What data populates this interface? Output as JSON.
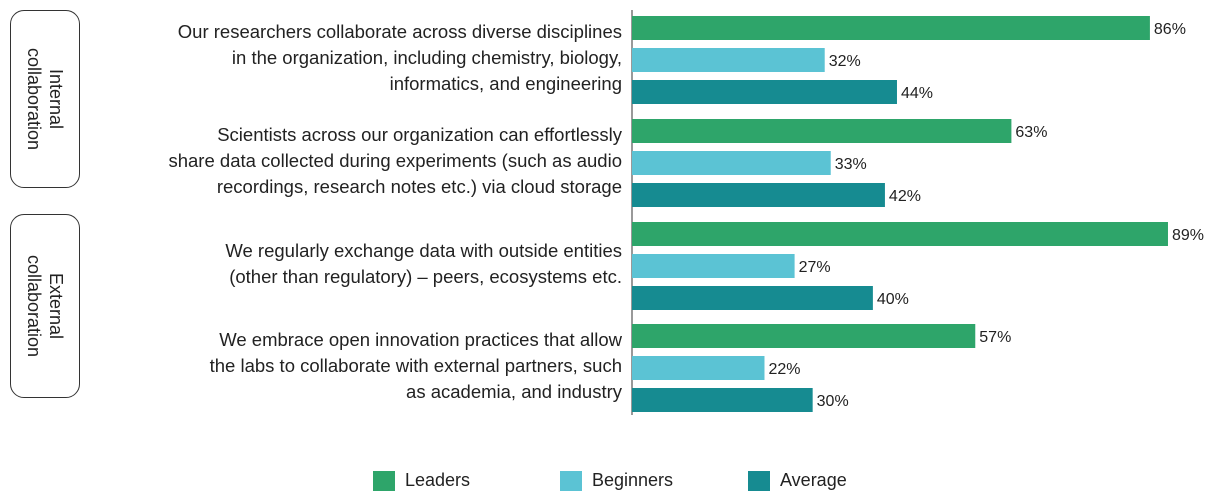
{
  "chart_data": {
    "type": "hbar",
    "groups": [
      "Internal\ncollaboration",
      "External\ncollaboration"
    ],
    "categories": [
      "Our researchers collaborate across diverse disciplines\nin the organization, including chemistry, biology,\ninformatics, and engineering",
      "Scientists across our organization can effortlessly\nshare data collected during experiments (such as audio\nrecordings, research notes etc.) via cloud storage",
      "We regularly exchange data with outside entities\n(other than regulatory) – peers, ecosystems etc.",
      "We embrace open innovation practices that allow\nthe labs to collaborate with external partners, such\nas academia, and industry"
    ],
    "series": [
      {
        "name": "Leaders",
        "color": "#2ea56a",
        "values": [
          86,
          63,
          89,
          57
        ],
        "value_labels": [
          "86%",
          "63%",
          "89%",
          "57%"
        ]
      },
      {
        "name": "Beginners",
        "color": "#5bc3d4",
        "values": [
          32,
          33,
          27,
          22
        ],
        "value_labels": [
          "32%",
          "33%",
          "27%",
          "22%"
        ]
      },
      {
        "name": "Average",
        "color": "#168b91",
        "values": [
          44,
          42,
          40,
          30
        ],
        "value_labels": [
          "44%",
          "42%",
          "40%",
          "30%"
        ]
      }
    ],
    "xlim": [
      0,
      90
    ]
  }
}
